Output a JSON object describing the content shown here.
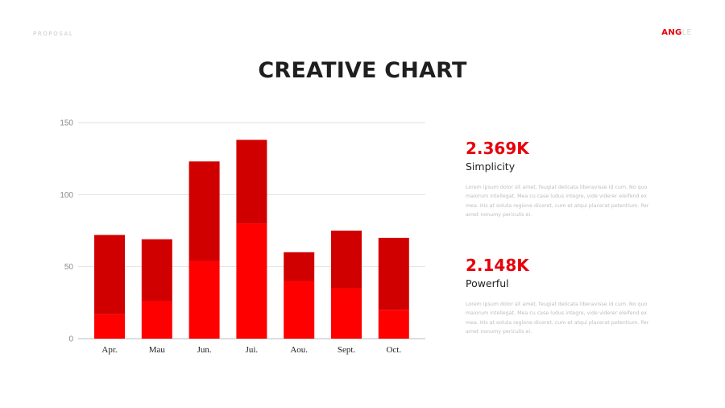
{
  "header": {
    "label": "PROPOSAL",
    "brand_strong": "ANG",
    "brand_light": "LE"
  },
  "title": "CREATIVE CHART",
  "colors": {
    "accent": "#e8000b",
    "bar_top": "#d10000",
    "bar_bottom": "#ff0000",
    "grid": "#e2e2e2"
  },
  "chart_data": {
    "type": "bar",
    "stacked": true,
    "categories": [
      "Apr.",
      "Mau",
      "Jun.",
      "Jui.",
      "Aou.",
      "Sept.",
      "Oct."
    ],
    "series": [
      {
        "values": [
          17,
          26,
          54,
          80,
          40,
          35,
          20
        ],
        "color": "#ff0000"
      },
      {
        "values": [
          55,
          43,
          69,
          58,
          20,
          40,
          50
        ],
        "color": "#d10000"
      }
    ],
    "totals": [
      72,
      69,
      123,
      138,
      60,
      75,
      70
    ],
    "ylim": [
      0,
      150
    ],
    "yticks": [
      0,
      50,
      100,
      150
    ],
    "grid": true,
    "xlabel": "",
    "ylabel": ""
  },
  "stats": [
    {
      "value": "2.369K",
      "label": "Simplicity",
      "desc": "Lorem ipsum dolor sit amet, feugiat delicata liberavisse id cum. No quo maiorum intellegat. Mea cu case ludus integre, vide viderer eleifend ex mea. His at soluta regione diceret, cum et atqui placerat petentium. Per amet nonumy periculis ei."
    },
    {
      "value": "2.148K",
      "label": "Powerful",
      "desc": "Lorem ipsum dolor sit amet, feugiat delicata liberavisse id cum. No quo maiorum intellegat. Mea cu case ludus integre, vide viderer eleifend ex mea. His at soluta regione diceret, cum et atqui placerat petentium. Per amet nonumy periculis ei."
    }
  ]
}
